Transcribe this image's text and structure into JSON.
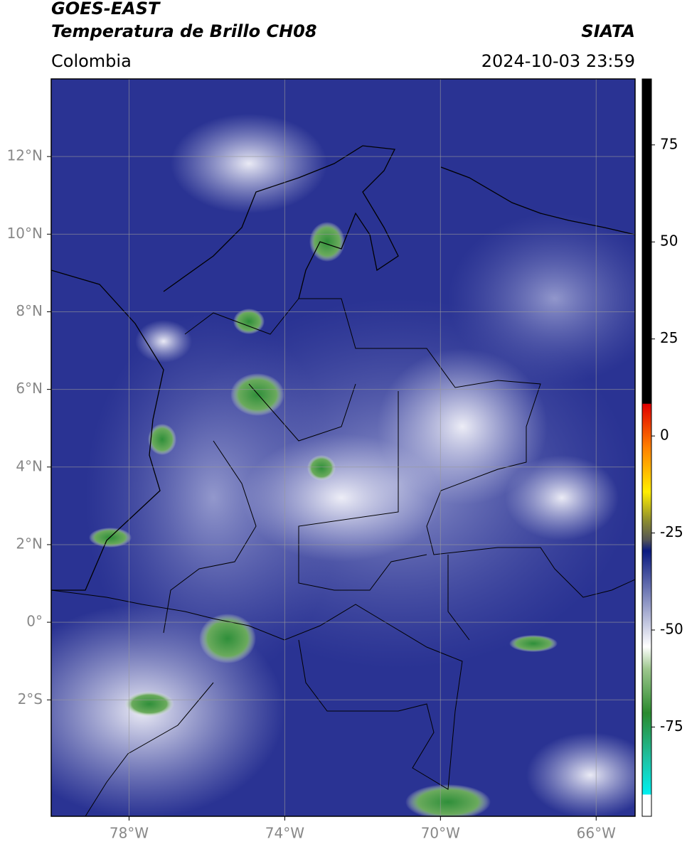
{
  "chart_data": {
    "type": "map",
    "title": "GOES-EAST",
    "subtitle": "Temperatura de Brillo CH08",
    "source": "SIATA",
    "region": "Colombia",
    "datetime": "2024-10-03 23:59",
    "xlim": [
      -80,
      -65
    ],
    "ylim": [
      -5,
      14
    ],
    "xticks": [
      {
        "value": -78,
        "label": "78°W"
      },
      {
        "value": -74,
        "label": "74°W"
      },
      {
        "value": -70,
        "label": "70°W"
      },
      {
        "value": -66,
        "label": "66°W"
      }
    ],
    "yticks": [
      {
        "value": -2,
        "label": "2°S"
      },
      {
        "value": 0,
        "label": "0°"
      },
      {
        "value": 2,
        "label": "2°N"
      },
      {
        "value": 4,
        "label": "4°N"
      },
      {
        "value": 6,
        "label": "6°N"
      },
      {
        "value": 8,
        "label": "8°N"
      },
      {
        "value": 10,
        "label": "10°N"
      },
      {
        "value": 12,
        "label": "12°N"
      }
    ],
    "grid": true,
    "colorbar": {
      "lim": [
        -98,
        92
      ],
      "ticks": [
        75,
        50,
        25,
        0,
        -25,
        -50,
        -75
      ]
    }
  }
}
